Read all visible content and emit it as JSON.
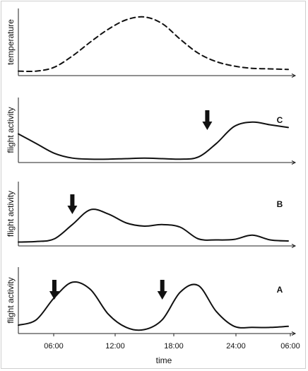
{
  "chart_data": [
    {
      "type": "line",
      "panel": "temperature",
      "ylabel": "temperature",
      "letter": "",
      "dashed": true,
      "x": [
        "00:00",
        "02:00",
        "04:00",
        "06:00",
        "08:00",
        "10:00",
        "12:00",
        "14:00",
        "16:00",
        "18:00",
        "20:00",
        "22:00",
        "00:00",
        "02:00",
        "04:00",
        "06:00"
      ],
      "series": [
        {
          "values": [
            0.03,
            0.03,
            0.1,
            0.3,
            0.55,
            0.78,
            0.95,
            1.0,
            0.88,
            0.6,
            0.35,
            0.2,
            0.12,
            0.08,
            0.07,
            0.06
          ]
        }
      ],
      "arrows_at": []
    },
    {
      "type": "line",
      "panel": "C",
      "ylabel": "flight activity",
      "letter": "C",
      "dashed": false,
      "x": [
        "00:00",
        "02:00",
        "04:00",
        "06:00",
        "08:00",
        "10:00",
        "12:00",
        "14:00",
        "16:00",
        "18:00",
        "20:00",
        "22:00",
        "00:00",
        "02:00",
        "04:00",
        "06:00"
      ],
      "series": [
        {
          "values": [
            0.48,
            0.3,
            0.12,
            0.03,
            0.01,
            0.01,
            0.02,
            0.03,
            0.02,
            0.01,
            0.05,
            0.3,
            0.62,
            0.7,
            0.65,
            0.6
          ]
        }
      ],
      "arrows_at": [
        "21:00"
      ]
    },
    {
      "type": "line",
      "panel": "B",
      "ylabel": "flight activity",
      "letter": "B",
      "dashed": false,
      "x": [
        "00:00",
        "02:00",
        "04:00",
        "06:00",
        "08:00",
        "10:00",
        "12:00",
        "14:00",
        "16:00",
        "18:00",
        "20:00",
        "22:00",
        "00:00",
        "02:00",
        "04:00",
        "06:00"
      ],
      "series": [
        {
          "values": [
            0.02,
            0.03,
            0.08,
            0.35,
            0.63,
            0.55,
            0.38,
            0.32,
            0.35,
            0.3,
            0.08,
            0.06,
            0.07,
            0.15,
            0.06,
            0.04
          ]
        }
      ],
      "arrows_at": [
        "06:00"
      ]
    },
    {
      "type": "line",
      "panel": "A",
      "ylabel": "flight activity",
      "letter": "A",
      "dashed": false,
      "x": [
        "00:00",
        "02:00",
        "04:00",
        "06:00",
        "08:00",
        "10:00",
        "12:00",
        "14:00",
        "16:00",
        "18:00",
        "20:00",
        "22:00",
        "00:00",
        "02:00",
        "04:00",
        "06:00"
      ],
      "series": [
        {
          "values": [
            0.1,
            0.2,
            0.6,
            0.88,
            0.75,
            0.3,
            0.06,
            0.02,
            0.2,
            0.7,
            0.82,
            0.35,
            0.08,
            0.06,
            0.06,
            0.08
          ]
        }
      ],
      "arrows_at": [
        "04:00",
        "16:00"
      ]
    }
  ],
  "x_ticks": [
    "06:00",
    "12:00",
    "18:00",
    "24:00",
    "06:00"
  ],
  "x_title": "time"
}
